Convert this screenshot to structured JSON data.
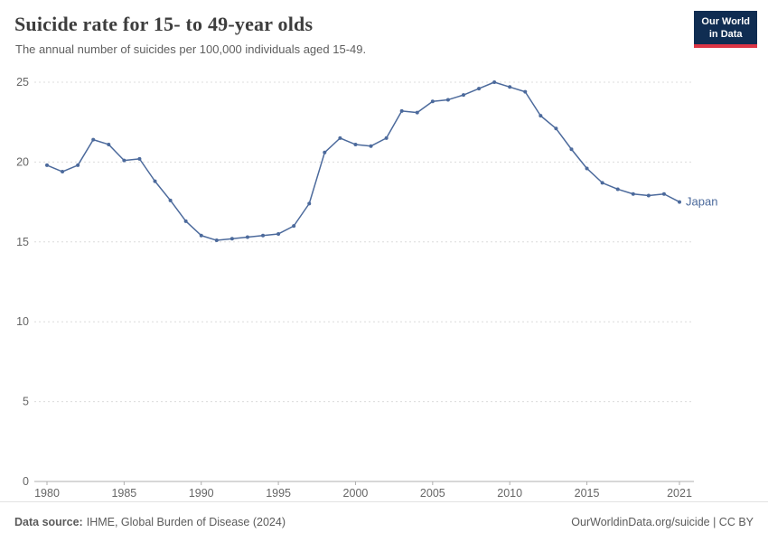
{
  "header": {
    "title": "Suicide rate for 15- to 49-year olds",
    "subtitle": "The annual number of suicides per 100,000 individuals aged 15-49."
  },
  "logo": {
    "line1": "Our World",
    "line2": "in Data"
  },
  "chart_data": {
    "type": "line",
    "title": "Suicide rate for 15- to 49-year olds",
    "x": [
      1980,
      1981,
      1982,
      1983,
      1984,
      1985,
      1986,
      1987,
      1988,
      1989,
      1990,
      1991,
      1992,
      1993,
      1994,
      1995,
      1996,
      1997,
      1998,
      1999,
      2000,
      2001,
      2002,
      2003,
      2004,
      2005,
      2006,
      2007,
      2008,
      2009,
      2010,
      2011,
      2012,
      2013,
      2014,
      2015,
      2016,
      2017,
      2018,
      2019,
      2020,
      2021
    ],
    "series": [
      {
        "name": "Japan",
        "values": [
          19.8,
          19.4,
          19.8,
          21.4,
          21.1,
          20.1,
          20.2,
          18.8,
          17.6,
          16.3,
          15.4,
          15.1,
          15.2,
          15.3,
          15.4,
          15.5,
          16.0,
          17.4,
          20.6,
          21.5,
          21.1,
          21.0,
          21.5,
          23.2,
          23.1,
          23.8,
          23.9,
          24.2,
          24.6,
          25.0,
          24.7,
          24.4,
          22.9,
          22.1,
          20.8,
          19.6,
          18.7,
          18.3,
          18.0,
          17.9,
          18.0,
          17.5
        ]
      }
    ],
    "xlabel": "",
    "ylabel": "",
    "ylim": [
      0,
      25
    ],
    "yticks": [
      0,
      5,
      10,
      15,
      20,
      25
    ],
    "xticks": [
      1980,
      1985,
      1990,
      1995,
      2000,
      2005,
      2010,
      2015,
      2021
    ],
    "grid": "horizontal-dashed",
    "legend_position": "end-of-line"
  },
  "colors": {
    "line": "#4c6a9c",
    "grid": "#dcdcdc",
    "axis": "#afafaf",
    "logo_bg": "#102d52",
    "logo_accent": "#dc3545"
  },
  "footer": {
    "source_label": "Data source:",
    "source_value": "IHME, Global Burden of Disease (2024)",
    "attribution": "OurWorldinData.org/suicide | CC BY"
  }
}
